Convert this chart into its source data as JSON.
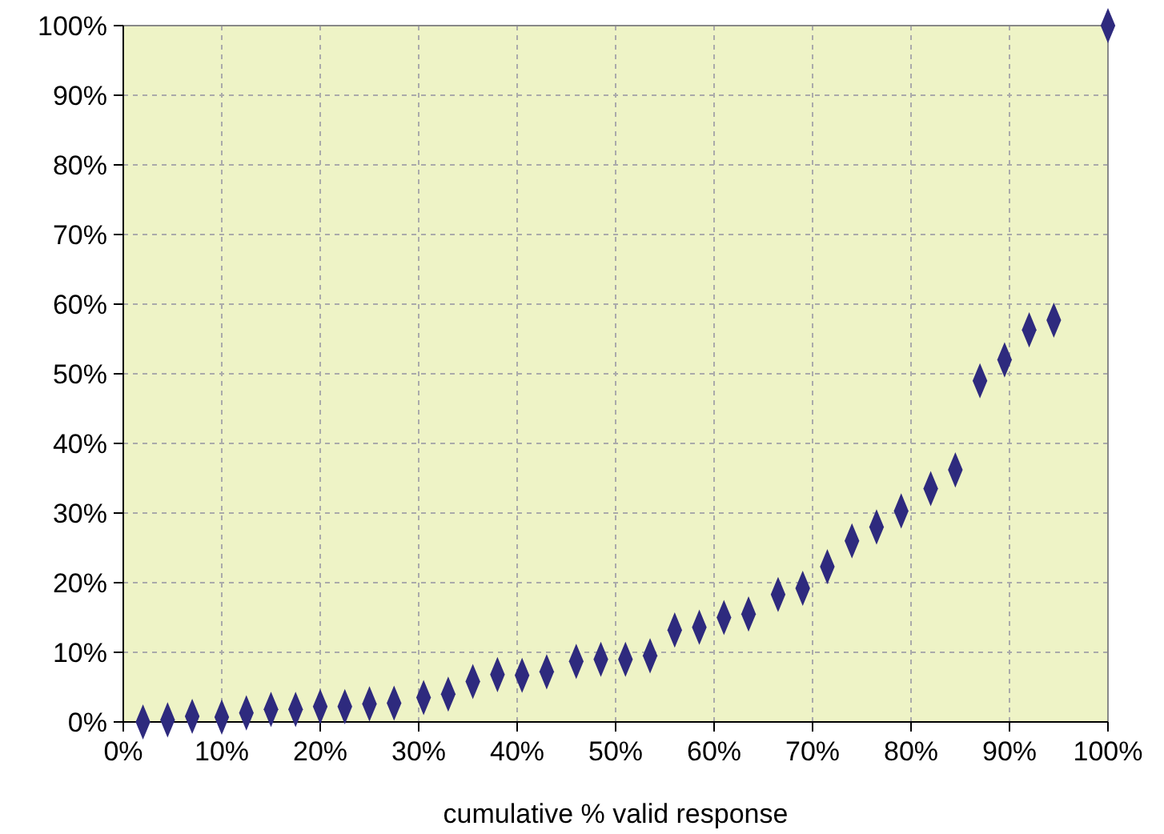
{
  "chart_data": {
    "type": "scatter",
    "xlabel": "cumulative % valid response",
    "x": [
      2,
      4.5,
      7,
      10,
      12.5,
      15,
      17.5,
      20,
      22.5,
      25,
      27.5,
      30.5,
      33,
      35.5,
      38,
      40.5,
      43,
      46,
      48.5,
      51,
      53.5,
      56,
      58.5,
      61,
      63.5,
      66.5,
      69,
      71.5,
      74,
      76.5,
      79,
      82,
      84.5,
      87,
      89.5,
      92,
      94.5,
      100
    ],
    "series": [
      {
        "color": "#2e2a7e",
        "values": [
          0,
          0.3,
          0.8,
          0.7,
          1.3,
          1.8,
          1.8,
          2.2,
          2.2,
          2.6,
          2.7,
          3.5,
          4,
          5.8,
          6.8,
          6.7,
          7.2,
          8.7,
          9,
          9,
          9.5,
          13.2,
          13.6,
          15,
          15.5,
          18.3,
          19.2,
          22.3,
          26,
          28,
          30.3,
          33.5,
          36.2,
          49,
          52,
          56.3,
          57.7,
          100
        ]
      }
    ],
    "xlim": [
      0,
      100
    ],
    "ylim": [
      0,
      100
    ],
    "xticks": [
      {
        "value": 0,
        "label": "0%"
      },
      {
        "value": 10,
        "label": "10%"
      },
      {
        "value": 20,
        "label": "20%"
      },
      {
        "value": 30,
        "label": "30%"
      },
      {
        "value": 40,
        "label": "40%"
      },
      {
        "value": 50,
        "label": "50%"
      },
      {
        "value": 60,
        "label": "60%"
      },
      {
        "value": 70,
        "label": "70%"
      },
      {
        "value": 80,
        "label": "80%"
      },
      {
        "value": 90,
        "label": "90%"
      },
      {
        "value": 100,
        "label": "100%"
      }
    ],
    "yticks": [
      {
        "value": 0,
        "label": "0%"
      },
      {
        "value": 10,
        "label": "10%"
      },
      {
        "value": 20,
        "label": "20%"
      },
      {
        "value": 30,
        "label": "30%"
      },
      {
        "value": 40,
        "label": "40%"
      },
      {
        "value": 50,
        "label": "50%"
      },
      {
        "value": 60,
        "label": "60%"
      },
      {
        "value": 70,
        "label": "70%"
      },
      {
        "value": 80,
        "label": "80%"
      },
      {
        "value": 90,
        "label": "90%"
      },
      {
        "value": 100,
        "label": "100%"
      }
    ],
    "grid": true,
    "marker": "diamond"
  }
}
